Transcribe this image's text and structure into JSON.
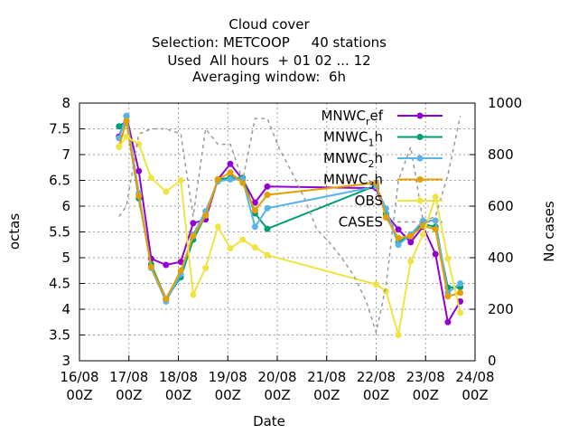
{
  "chart_data": {
    "type": "line",
    "title_lines": [
      "Cloud cover",
      "Selection: METCOOP     40 stations",
      "Used  All hours  + 01 02 ... 12",
      "Averaging window:  6h"
    ],
    "xlabel": "Date",
    "ylabel": "octas",
    "y2label": "No cases",
    "x_ticks": [
      {
        "value": 0,
        "line1": "16/08",
        "line2": "00Z"
      },
      {
        "value": 1,
        "line1": "17/08",
        "line2": "00Z"
      },
      {
        "value": 2,
        "line1": "18/08",
        "line2": "00Z"
      },
      {
        "value": 3,
        "line1": "19/08",
        "line2": "00Z"
      },
      {
        "value": 4,
        "line1": "20/08",
        "line2": "00Z"
      },
      {
        "value": 5,
        "line1": "21/08",
        "line2": "00Z"
      },
      {
        "value": 6,
        "line1": "22/08",
        "line2": "00Z"
      },
      {
        "value": 7,
        "line1": "23/08",
        "line2": "00Z"
      },
      {
        "value": 8,
        "line1": "24/08",
        "line2": "00Z"
      }
    ],
    "xlim": [
      0,
      8
    ],
    "ylim": [
      3,
      8
    ],
    "y_ticks": [
      "3",
      "3.5",
      "4",
      "4.5",
      "5",
      "5.5",
      "6",
      "6.5",
      "7",
      "7.5",
      "8"
    ],
    "y2lim": [
      0,
      1000
    ],
    "y2_ticks": [
      "0",
      "200",
      "400",
      "600",
      "800",
      "1000"
    ],
    "grid": true,
    "legend_position": "top-right",
    "series": [
      {
        "name": "MNWC_ref",
        "legend_parts": [
          "MNWC",
          "r",
          "ef"
        ],
        "color": "#9400d3",
        "marker": "circle",
        "axis": "y",
        "x": [
          0.8,
          0.95,
          1.2,
          1.45,
          1.75,
          2.05,
          2.3,
          2.55,
          2.8,
          3.05,
          3.3,
          3.55,
          3.8,
          6.0,
          6.2,
          6.45,
          6.7,
          6.95,
          7.2,
          7.45,
          7.7
        ],
        "y": [
          7.35,
          7.75,
          6.68,
          4.98,
          4.86,
          4.92,
          5.67,
          5.74,
          6.52,
          6.82,
          6.52,
          6.07,
          6.38,
          6.35,
          5.85,
          5.55,
          5.3,
          5.6,
          5.07,
          3.75,
          4.15
        ]
      },
      {
        "name": "MNWC_1h",
        "legend_parts": [
          "MNWC",
          "1",
          "h"
        ],
        "color": "#009e73",
        "marker": "circle",
        "axis": "y",
        "x": [
          0.8,
          0.95,
          1.2,
          1.45,
          1.75,
          2.05,
          2.3,
          2.55,
          2.8,
          3.05,
          3.3,
          3.55,
          3.8,
          6.0,
          6.2,
          6.45,
          6.7,
          6.95,
          7.2,
          7.45,
          7.7
        ],
        "y": [
          7.55,
          7.65,
          6.15,
          4.87,
          4.2,
          4.62,
          5.35,
          5.82,
          6.52,
          6.55,
          6.55,
          5.86,
          5.56,
          6.4,
          5.85,
          5.3,
          5.45,
          5.65,
          5.6,
          4.42,
          4.43
        ]
      },
      {
        "name": "MNWC_2h",
        "legend_parts": [
          "MNWC",
          "2",
          "h"
        ],
        "color": "#56b4e9",
        "marker": "circle",
        "axis": "y",
        "x": [
          0.8,
          0.95,
          1.2,
          1.45,
          1.75,
          2.05,
          2.3,
          2.55,
          2.8,
          3.05,
          3.3,
          3.55,
          3.8,
          6.0,
          6.2,
          6.45,
          6.7,
          6.95,
          7.2,
          7.45,
          7.7
        ],
        "y": [
          7.32,
          7.75,
          6.25,
          4.8,
          4.15,
          4.68,
          5.45,
          5.9,
          6.48,
          6.52,
          6.52,
          5.6,
          5.96,
          6.38,
          5.95,
          5.25,
          5.45,
          5.72,
          5.72,
          4.32,
          4.5
        ]
      },
      {
        "name": "MNWC_3h",
        "legend_parts": [
          "MNWC",
          "3",
          "h"
        ],
        "color": "#e69f00",
        "marker": "circle",
        "axis": "y",
        "x": [
          0.8,
          0.95,
          1.2,
          1.45,
          1.75,
          2.05,
          2.3,
          2.55,
          2.8,
          3.05,
          3.3,
          3.55,
          3.8,
          6.0,
          6.2,
          6.45,
          6.7,
          6.95,
          7.2,
          7.45,
          7.7
        ],
        "y": [
          7.15,
          7.65,
          6.2,
          4.82,
          4.2,
          4.75,
          5.42,
          5.82,
          6.52,
          6.65,
          6.45,
          5.92,
          6.22,
          6.45,
          5.78,
          5.38,
          5.42,
          5.62,
          5.55,
          4.25,
          4.32
        ]
      },
      {
        "name": "OBS",
        "legend_parts": [
          "OBS",
          "",
          ""
        ],
        "color": "#f0e442",
        "marker": "circle",
        "axis": "y",
        "x": [
          0.8,
          0.95,
          1.2,
          1.45,
          1.75,
          2.05,
          2.3,
          2.55,
          2.8,
          3.05,
          3.3,
          3.55,
          3.8,
          6.0,
          6.2,
          6.45,
          6.7,
          6.95,
          7.2,
          7.45,
          7.7
        ],
        "y": [
          7.15,
          7.35,
          7.2,
          6.55,
          6.28,
          6.5,
          4.28,
          4.8,
          5.6,
          5.18,
          5.35,
          5.2,
          5.05,
          4.48,
          4.35,
          3.5,
          4.93,
          5.45,
          6.18,
          4.98,
          3.93
        ]
      },
      {
        "name": "CASES",
        "legend_parts": [
          "CASES",
          "",
          ""
        ],
        "color": "#999999",
        "marker": "none",
        "dashed": true,
        "axis": "y2",
        "x": [
          0.8,
          0.95,
          1.2,
          1.45,
          1.75,
          2.05,
          2.3,
          2.55,
          2.8,
          3.05,
          3.3,
          3.55,
          3.8,
          4.05,
          4.3,
          4.55,
          4.8,
          5.05,
          5.3,
          5.55,
          5.8,
          6.0,
          6.2,
          6.45,
          6.7,
          6.95,
          7.2,
          7.45,
          7.7
        ],
        "y": [
          560,
          600,
          880,
          900,
          900,
          880,
          560,
          900,
          840,
          840,
          700,
          940,
          940,
          820,
          730,
          630,
          510,
          460,
          400,
          330,
          230,
          110,
          290,
          700,
          830,
          540,
          560,
          720,
          950
        ]
      }
    ]
  }
}
